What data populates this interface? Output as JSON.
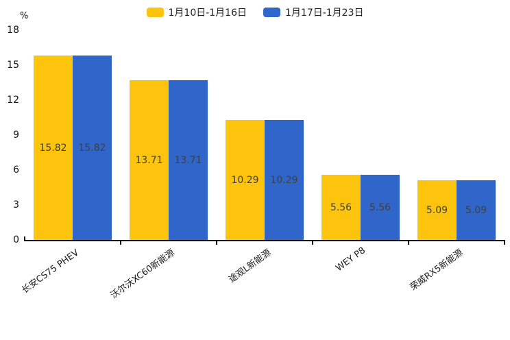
{
  "legend": {
    "items": [
      {
        "label": "1月10日-1月16日"
      },
      {
        "label": "1月17日-1月23日"
      }
    ]
  },
  "y_axis": {
    "unit": "%"
  },
  "chart_data": {
    "type": "bar",
    "title": "",
    "categories": [
      "长安CS75 PHEV",
      "沃尔沃XC60新能源",
      "途观L新能源",
      "WEY P8",
      "荣威RX5新能源"
    ],
    "series": [
      {
        "name": "1月10日-1月16日",
        "color": "#FCC40D",
        "values": [
          15.82,
          13.71,
          10.29,
          5.56,
          5.09
        ]
      },
      {
        "name": "1月17日-1月23日",
        "color": "#3065C9",
        "values": [
          15.82,
          13.71,
          10.29,
          5.56,
          5.09
        ]
      }
    ],
    "xlabel": "",
    "ylabel": "%",
    "ylim": [
      0,
      18
    ],
    "yticks": [
      0,
      3,
      6,
      9,
      12,
      15,
      18
    ],
    "grid": false,
    "legend_position": "top-center",
    "value_labels": "inside-center",
    "value_label_color": "#404040",
    "axis_color": "#111111",
    "category_label_rotation_deg": -36
  }
}
